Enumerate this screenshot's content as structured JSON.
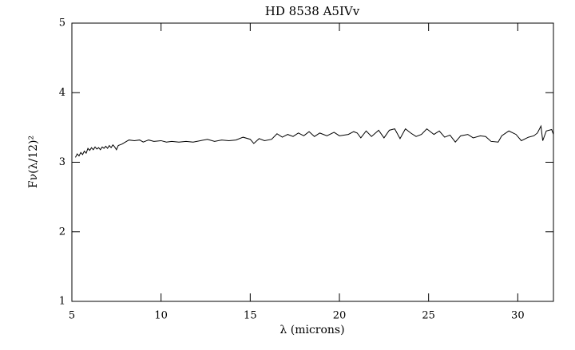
{
  "chart_data": {
    "type": "line",
    "title": "HD 8538 A5IVv",
    "xlabel": "λ (microns)",
    "ylabel": "Fν(λ/12)²",
    "color": "#000000",
    "x": [
      5.2,
      5.3,
      5.4,
      5.5,
      5.6,
      5.7,
      5.8,
      5.9,
      6.0,
      6.1,
      6.2,
      6.3,
      6.4,
      6.5,
      6.6,
      6.7,
      6.8,
      6.9,
      7.0,
      7.1,
      7.2,
      7.3,
      7.4,
      7.5,
      7.6,
      7.8,
      8.0,
      8.2,
      8.5,
      8.8,
      9.0,
      9.3,
      9.6,
      10.0,
      10.3,
      10.6,
      11.0,
      11.4,
      11.8,
      12.2,
      12.6,
      13.0,
      13.4,
      13.8,
      14.2,
      14.6,
      15.0,
      15.2,
      15.5,
      15.8,
      16.2,
      16.5,
      16.8,
      17.1,
      17.4,
      17.7,
      18.0,
      18.3,
      18.6,
      18.9,
      19.3,
      19.7,
      20.0,
      20.5,
      20.8,
      21.0,
      21.2,
      21.5,
      21.8,
      22.2,
      22.5,
      22.8,
      23.1,
      23.4,
      23.7,
      24.0,
      24.3,
      24.6,
      24.9,
      25.3,
      25.6,
      25.9,
      26.2,
      26.5,
      26.8,
      27.2,
      27.5,
      27.9,
      28.2,
      28.5,
      28.9,
      29.1,
      29.5,
      29.9,
      30.2,
      30.6,
      30.9,
      31.1,
      31.3,
      31.4,
      31.6,
      31.9,
      32.0
    ],
    "values": [
      3.07,
      3.12,
      3.09,
      3.14,
      3.11,
      3.16,
      3.13,
      3.2,
      3.17,
      3.21,
      3.18,
      3.22,
      3.19,
      3.21,
      3.18,
      3.22,
      3.2,
      3.23,
      3.2,
      3.24,
      3.21,
      3.25,
      3.22,
      3.18,
      3.24,
      3.26,
      3.29,
      3.32,
      3.31,
      3.32,
      3.29,
      3.32,
      3.3,
      3.31,
      3.29,
      3.3,
      3.29,
      3.3,
      3.29,
      3.31,
      3.33,
      3.3,
      3.32,
      3.31,
      3.32,
      3.36,
      3.33,
      3.27,
      3.34,
      3.31,
      3.33,
      3.41,
      3.36,
      3.4,
      3.37,
      3.42,
      3.38,
      3.44,
      3.37,
      3.42,
      3.38,
      3.43,
      3.38,
      3.4,
      3.44,
      3.42,
      3.35,
      3.45,
      3.37,
      3.46,
      3.35,
      3.46,
      3.48,
      3.34,
      3.48,
      3.42,
      3.37,
      3.4,
      3.48,
      3.4,
      3.45,
      3.36,
      3.39,
      3.29,
      3.38,
      3.4,
      3.35,
      3.38,
      3.37,
      3.3,
      3.29,
      3.38,
      3.45,
      3.4,
      3.31,
      3.36,
      3.38,
      3.42,
      3.52,
      3.31,
      3.45,
      3.47,
      3.4
    ],
    "xlim": [
      5,
      32
    ],
    "ylim": [
      1,
      5
    ],
    "xticks": [
      5,
      10,
      15,
      20,
      25,
      30
    ],
    "yticks": [
      1,
      2,
      3,
      4,
      5
    ]
  }
}
